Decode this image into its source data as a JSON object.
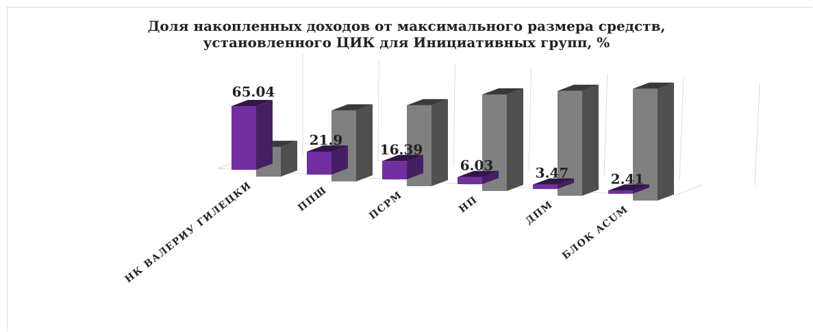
{
  "chart_data": {
    "type": "bar",
    "title_lines": [
      "Доля накопленных доходов от максимального размера средств,",
      "установленного ЦИК для Инициативных групп, %"
    ],
    "categories": [
      "НК ВАЛЕРИУ ГИЛЕЦКИ",
      "ППШ",
      "ПСРМ",
      "НП",
      "ДПМ",
      "БЛОК ACUM"
    ],
    "series": [
      {
        "values": [
          65.04,
          21.9,
          16.39,
          6.03,
          3.47,
          2.41
        ],
        "color": "#7030a0"
      },
      {
        "values": [
          34.96,
          78.1,
          83.61,
          93.97,
          96.53,
          97.59
        ],
        "color": "#808080"
      }
    ],
    "data_labels": [
      "65.04",
      "21.9",
      "16.39",
      "6.03",
      "3.47",
      "2.41"
    ],
    "ylim": [
      0,
      100
    ],
    "grid": true,
    "legend": "none",
    "projection": "3d-perspective"
  }
}
